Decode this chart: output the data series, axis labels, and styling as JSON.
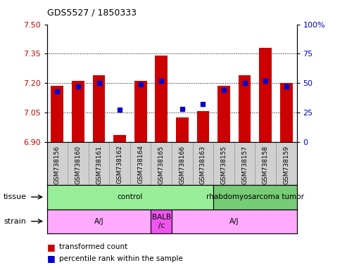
{
  "title": "GDS5527 / 1850333",
  "samples": [
    "GSM738156",
    "GSM738160",
    "GSM738161",
    "GSM738162",
    "GSM738164",
    "GSM738165",
    "GSM738166",
    "GSM738163",
    "GSM738155",
    "GSM738157",
    "GSM738158",
    "GSM738159"
  ],
  "bar_values": [
    7.185,
    7.21,
    7.24,
    6.935,
    7.21,
    7.34,
    7.025,
    7.055,
    7.185,
    7.24,
    7.38,
    7.2
  ],
  "percentile_values": [
    43,
    47,
    50,
    27,
    49,
    52,
    28,
    32,
    44,
    50,
    52,
    47
  ],
  "bar_bottom": 6.9,
  "ylim_left": [
    6.9,
    7.5
  ],
  "ylim_right": [
    0,
    100
  ],
  "yticks_left": [
    6.9,
    7.05,
    7.2,
    7.35,
    7.5
  ],
  "yticks_right": [
    0,
    25,
    50,
    75,
    100
  ],
  "ytick_labels_right": [
    "0",
    "25",
    "50",
    "75",
    "100%"
  ],
  "hlines": [
    7.05,
    7.2,
    7.35
  ],
  "bar_color": "#cc0000",
  "dot_color": "#0000cc",
  "tissue_groups": [
    {
      "label": "control",
      "start": 0,
      "end": 8,
      "color": "#99ee99"
    },
    {
      "label": "rhabdomyosarcoma tumor",
      "start": 8,
      "end": 12,
      "color": "#77cc77"
    }
  ],
  "strain_groups": [
    {
      "label": "A/J",
      "start": 0,
      "end": 5,
      "color": "#ffaaff"
    },
    {
      "label": "BALB\n/c",
      "start": 5,
      "end": 6,
      "color": "#ee55ee"
    },
    {
      "label": "A/J",
      "start": 6,
      "end": 12,
      "color": "#ffaaff"
    }
  ],
  "tissue_label": "tissue",
  "strain_label": "strain",
  "legend_items": [
    "transformed count",
    "percentile rank within the sample"
  ],
  "bar_color_legend": "#cc0000",
  "dot_color_legend": "#0000cc",
  "tick_label_color_left": "#cc0000",
  "tick_label_color_right": "#0000cc",
  "xtick_bg_color": "#d0d0d0",
  "plot_bg": "#ffffff"
}
